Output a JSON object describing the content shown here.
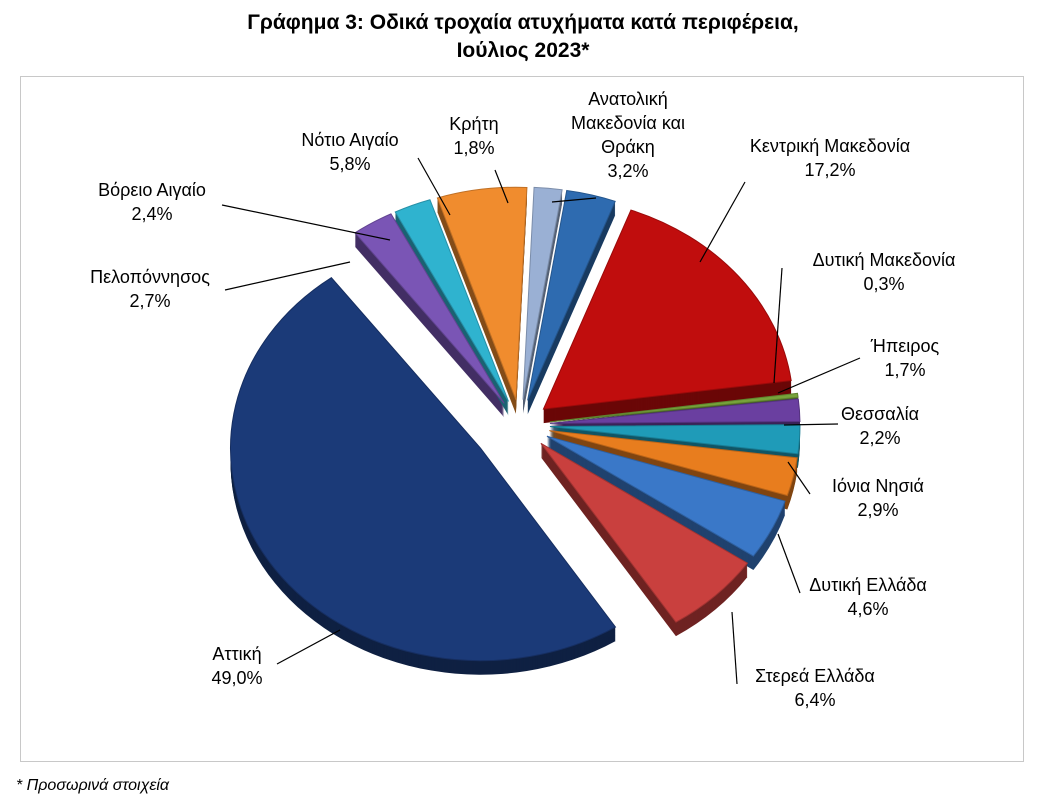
{
  "title_line1": "Γράφημα 3: Οδικά τροχαία ατυχήματα κατά περιφέρεια,",
  "title_line2": "Ιούλιος 2023*",
  "footnote": "* Προσωρινά στοιχεία",
  "chart_data": {
    "type": "pie",
    "title": "Γράφημα 3: Οδικά τροχαία ατυχήματα κατά περιφέρεια, Ιούλιος 2023*",
    "exploded": true,
    "three_d": true,
    "slices": [
      {
        "label": "Ανατολική Μακεδονία και Θράκη",
        "value": 3.2,
        "display": "3,2%",
        "color": "#2e6bb0"
      },
      {
        "label": "Κεντρική Μακεδονία",
        "value": 17.2,
        "display": "17,2%",
        "color": "#c00d0d"
      },
      {
        "label": "Δυτική Μακεδονία",
        "value": 0.3,
        "display": "0,3%",
        "color": "#77a33a"
      },
      {
        "label": "Ήπειρος",
        "value": 1.7,
        "display": "1,7%",
        "color": "#6a3fa0"
      },
      {
        "label": "Θεσσαλία",
        "value": 2.2,
        "display": "2,2%",
        "color": "#1f9bb8"
      },
      {
        "label": "Ιόνια Νησιά",
        "value": 2.9,
        "display": "2,9%",
        "color": "#e87d1e"
      },
      {
        "label": "Δυτική Ελλάδα",
        "value": 4.6,
        "display": "4,6%",
        "color": "#3a78c8"
      },
      {
        "label": "Στερεά Ελλάδα",
        "value": 6.4,
        "display": "6,4%",
        "color": "#c9403e"
      },
      {
        "label": "Αττική",
        "value": 49.0,
        "display": "49,0%",
        "color": "#1b3a78"
      },
      {
        "label": "Πελοπόννησος",
        "value": 2.7,
        "display": "2,7%",
        "color": "#7a55b5"
      },
      {
        "label": "Βόρειο Αιγαίο",
        "value": 2.4,
        "display": "2,4%",
        "color": "#2fb3cf"
      },
      {
        "label": "Νότιο Αιγαίο",
        "value": 5.8,
        "display": "5,8%",
        "color": "#f08c2e"
      },
      {
        "label": "Κρήτη",
        "value": 1.8,
        "display": "1,8%",
        "color": "#9ab0d4"
      }
    ]
  }
}
